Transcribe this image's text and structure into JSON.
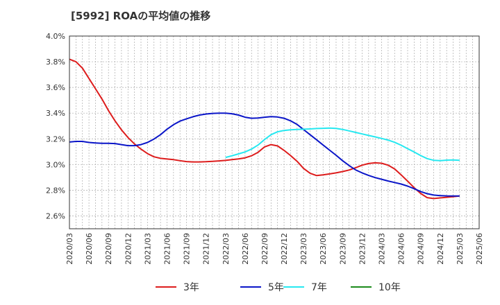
{
  "chart_data": {
    "type": "line",
    "title": "[5992]  ROAの平均値の推移",
    "xlabel": "",
    "ylabel": "",
    "ylim": [
      2.5,
      4.0
    ],
    "xlim": [
      "2020/03",
      "2025/06"
    ],
    "yticks": [
      "2.6%",
      "2.8%",
      "3.0%",
      "3.2%",
      "3.4%",
      "3.6%",
      "3.8%",
      "4.0%"
    ],
    "ytick_values": [
      2.6,
      2.8,
      3.0,
      3.2,
      3.4,
      3.6,
      3.8,
      4.0
    ],
    "xticks": [
      "2020/03",
      "2020/06",
      "2020/09",
      "2020/12",
      "2021/03",
      "2021/06",
      "2021/09",
      "2021/12",
      "2022/03",
      "2022/06",
      "2022/09",
      "2022/12",
      "2023/03",
      "2023/06",
      "2023/09",
      "2023/12",
      "2024/03",
      "2024/06",
      "2024/09",
      "2024/12",
      "2025/03",
      "2025/06"
    ],
    "grid": true,
    "legend_position": "bottom",
    "series": [
      {
        "name": "3年",
        "color": "#dd1c1c",
        "x": [
          "2020/03",
          "2020/04",
          "2020/05",
          "2020/06",
          "2020/07",
          "2020/08",
          "2020/09",
          "2020/10",
          "2020/11",
          "2020/12",
          "2021/01",
          "2021/02",
          "2021/03",
          "2021/04",
          "2021/05",
          "2021/06",
          "2021/07",
          "2021/08",
          "2021/09",
          "2021/10",
          "2021/11",
          "2021/12",
          "2022/01",
          "2022/02",
          "2022/03",
          "2022/04",
          "2022/05",
          "2022/06",
          "2022/07",
          "2022/08",
          "2022/09",
          "2022/10",
          "2022/11",
          "2022/12",
          "2023/01",
          "2023/02",
          "2023/03",
          "2023/04",
          "2023/05",
          "2023/06",
          "2023/07",
          "2023/08",
          "2023/09",
          "2023/10",
          "2023/11",
          "2023/12",
          "2024/01",
          "2024/02",
          "2024/03",
          "2024/04",
          "2024/05",
          "2024/06",
          "2024/07",
          "2024/08",
          "2024/09",
          "2024/10",
          "2024/11",
          "2024/12",
          "2025/01",
          "2025/02",
          "2025/03"
        ],
        "values": [
          3.82,
          3.8,
          3.75,
          3.67,
          3.59,
          3.51,
          3.42,
          3.34,
          3.27,
          3.21,
          3.16,
          3.12,
          3.085,
          3.06,
          3.048,
          3.043,
          3.038,
          3.03,
          3.023,
          3.02,
          3.02,
          3.022,
          3.025,
          3.028,
          3.032,
          3.038,
          3.044,
          3.052,
          3.068,
          3.095,
          3.137,
          3.155,
          3.145,
          3.11,
          3.07,
          3.025,
          2.97,
          2.932,
          2.914,
          2.92,
          2.927,
          2.935,
          2.945,
          2.957,
          2.975,
          2.995,
          3.008,
          3.013,
          3.01,
          2.995,
          2.965,
          2.92,
          2.87,
          2.82,
          2.775,
          2.742,
          2.735,
          2.74,
          2.745,
          2.75,
          2.755
        ]
      },
      {
        "name": "5年",
        "color": "#0a15c8",
        "x": [
          "2020/03",
          "2020/04",
          "2020/05",
          "2020/06",
          "2020/07",
          "2020/08",
          "2020/09",
          "2020/10",
          "2020/11",
          "2020/12",
          "2021/01",
          "2021/02",
          "2021/03",
          "2021/04",
          "2021/05",
          "2021/06",
          "2021/07",
          "2021/08",
          "2021/09",
          "2021/10",
          "2021/11",
          "2021/12",
          "2022/01",
          "2022/02",
          "2022/03",
          "2022/04",
          "2022/05",
          "2022/06",
          "2022/07",
          "2022/08",
          "2022/09",
          "2022/10",
          "2022/11",
          "2022/12",
          "2023/01",
          "2023/02",
          "2023/03",
          "2023/04",
          "2023/05",
          "2023/06",
          "2023/07",
          "2023/08",
          "2023/09",
          "2023/10",
          "2023/11",
          "2023/12",
          "2024/01",
          "2024/02",
          "2024/03",
          "2024/04",
          "2024/05",
          "2024/06",
          "2024/07",
          "2024/08",
          "2024/09",
          "2024/10",
          "2024/11",
          "2024/12",
          "2025/01",
          "2025/02",
          "2025/03"
        ],
        "values": [
          3.175,
          3.18,
          3.18,
          3.172,
          3.168,
          3.165,
          3.165,
          3.163,
          3.155,
          3.147,
          3.147,
          3.155,
          3.172,
          3.198,
          3.232,
          3.275,
          3.31,
          3.338,
          3.356,
          3.372,
          3.385,
          3.393,
          3.398,
          3.4,
          3.4,
          3.395,
          3.385,
          3.368,
          3.36,
          3.362,
          3.368,
          3.373,
          3.37,
          3.36,
          3.34,
          3.312,
          3.272,
          3.232,
          3.192,
          3.152,
          3.112,
          3.072,
          3.03,
          2.992,
          2.958,
          2.935,
          2.915,
          2.898,
          2.885,
          2.872,
          2.86,
          2.848,
          2.832,
          2.812,
          2.79,
          2.773,
          2.762,
          2.758,
          2.756,
          2.755,
          2.755
        ]
      },
      {
        "name": "7年",
        "color": "#26e8f0",
        "x": [
          "2022/03",
          "2022/04",
          "2022/05",
          "2022/06",
          "2022/07",
          "2022/08",
          "2022/09",
          "2022/10",
          "2022/11",
          "2022/12",
          "2023/01",
          "2023/02",
          "2023/03",
          "2023/04",
          "2023/05",
          "2023/06",
          "2023/07",
          "2023/08",
          "2023/09",
          "2023/10",
          "2023/11",
          "2023/12",
          "2024/01",
          "2024/02",
          "2024/03",
          "2024/04",
          "2024/05",
          "2024/06",
          "2024/07",
          "2024/08",
          "2024/09",
          "2024/10",
          "2024/11",
          "2024/12",
          "2025/01",
          "2025/02",
          "2025/03"
        ],
        "values": [
          3.055,
          3.068,
          3.083,
          3.098,
          3.12,
          3.152,
          3.195,
          3.232,
          3.255,
          3.265,
          3.27,
          3.273,
          3.275,
          3.277,
          3.28,
          3.282,
          3.284,
          3.281,
          3.273,
          3.262,
          3.25,
          3.238,
          3.226,
          3.215,
          3.203,
          3.19,
          3.173,
          3.15,
          3.123,
          3.098,
          3.07,
          3.046,
          3.033,
          3.03,
          3.034,
          3.036,
          3.033
        ]
      },
      {
        "name": "10年",
        "color": "#1b8a1b",
        "x": [],
        "values": []
      }
    ]
  }
}
